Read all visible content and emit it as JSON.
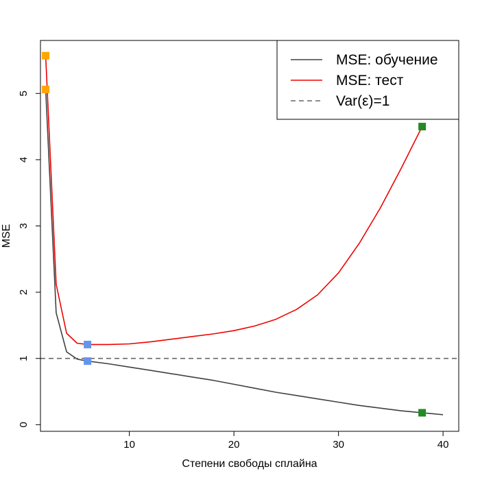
{
  "chart_data": {
    "type": "line",
    "title": "",
    "xlabel": "Степени свободы сплайна",
    "ylabel": "MSE",
    "xlim": [
      1.5,
      41.5
    ],
    "ylim": [
      -0.1,
      5.8
    ],
    "x_ticks": [
      10,
      20,
      30,
      40
    ],
    "y_ticks": [
      0,
      1,
      2,
      3,
      4,
      5
    ],
    "grid": false,
    "legend_position": "top-right",
    "series": [
      {
        "name": "MSE: обучение",
        "color": "#404040",
        "style": "solid",
        "x": [
          2,
          3,
          4,
          5,
          6,
          8,
          10,
          12,
          14,
          16,
          18,
          20,
          22,
          24,
          26,
          28,
          30,
          32,
          34,
          36,
          38,
          40
        ],
        "y": [
          5.06,
          1.69,
          1.1,
          0.99,
          0.96,
          0.92,
          0.87,
          0.82,
          0.77,
          0.72,
          0.67,
          0.61,
          0.55,
          0.49,
          0.44,
          0.39,
          0.34,
          0.29,
          0.25,
          0.21,
          0.18,
          0.15
        ]
      },
      {
        "name": "MSE: тест",
        "color": "#ee0000",
        "style": "solid",
        "x": [
          2,
          3,
          4,
          5,
          6,
          8,
          10,
          12,
          14,
          16,
          18,
          20,
          22,
          24,
          26,
          28,
          30,
          32,
          34,
          36,
          38
        ],
        "y": [
          5.57,
          2.12,
          1.38,
          1.23,
          1.21,
          1.21,
          1.22,
          1.25,
          1.29,
          1.33,
          1.37,
          1.42,
          1.49,
          1.59,
          1.74,
          1.96,
          2.29,
          2.74,
          3.27,
          3.87,
          4.5
        ]
      },
      {
        "name": "Var(ε)=1",
        "color": "#666666",
        "style": "dashed",
        "hline": 1
      }
    ],
    "markers": [
      {
        "x": 2,
        "y": 5.57,
        "color": "#ffa500",
        "shape": "square"
      },
      {
        "x": 2,
        "y": 5.06,
        "color": "#ffa500",
        "shape": "square"
      },
      {
        "x": 6,
        "y": 1.21,
        "color": "#6495ed",
        "shape": "square"
      },
      {
        "x": 6,
        "y": 0.96,
        "color": "#6495ed",
        "shape": "square"
      },
      {
        "x": 38,
        "y": 4.5,
        "color": "#228b22",
        "shape": "square"
      },
      {
        "x": 38,
        "y": 0.18,
        "color": "#228b22",
        "shape": "square"
      }
    ]
  }
}
